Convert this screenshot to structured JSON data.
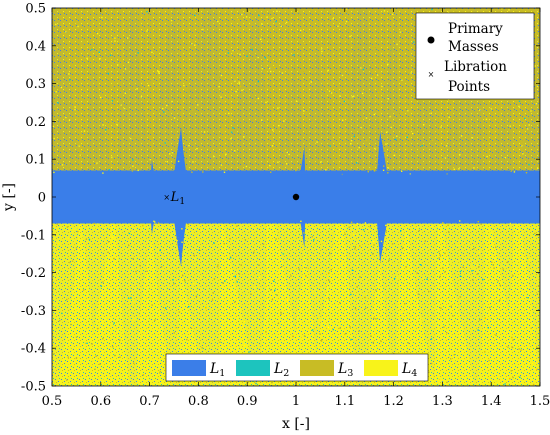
{
  "chart_data": {
    "type": "heatmap",
    "title": "",
    "xlabel": "x [-]",
    "ylabel": "y [-]",
    "xlim": [
      0.5,
      1.5
    ],
    "ylim": [
      -0.5,
      0.5
    ],
    "xticks": [
      "0.5",
      "0.6",
      "0.7",
      "0.8",
      "0.9",
      "1",
      "1.1",
      "1.2",
      "1.3",
      "1.4",
      "1.5"
    ],
    "yticks": [
      "0.5",
      "0.4",
      "0.3",
      "0.2",
      "0.1",
      "0",
      "-0.1",
      "-0.2",
      "-0.3",
      "-0.4",
      "-0.5"
    ],
    "classes": [
      {
        "name": "L",
        "sub": "1",
        "color": "#3b7ee8"
      },
      {
        "name": "L",
        "sub": "2",
        "color": "#1dc4be"
      },
      {
        "name": "L",
        "sub": "3",
        "color": "#c8bc25"
      },
      {
        "name": "L",
        "sub": "4",
        "color": "#f8f31a"
      }
    ],
    "primary_masses": [
      {
        "x": 1.0,
        "y": 0.0
      }
    ],
    "libration_points": [
      {
        "x": 0.735,
        "y": 0.0,
        "label": "L",
        "sub": "1"
      }
    ],
    "legend_markers": {
      "primary_line1": "Primary",
      "primary_line2": "Masses",
      "libration_line1": "Libration",
      "libration_line2": "Points",
      "placement": "top-right"
    },
    "grid": false
  }
}
